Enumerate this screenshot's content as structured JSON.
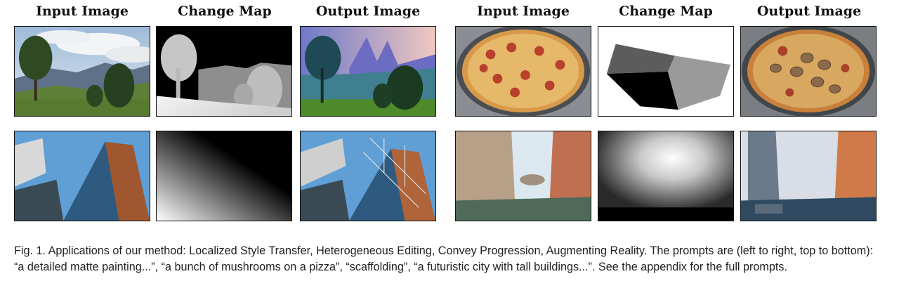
{
  "headers": {
    "left": [
      "Input Image",
      "Change Map",
      "Output Image"
    ],
    "right": [
      "Input Image",
      "Change Map",
      "Output Image"
    ]
  },
  "images": [
    [
      "landscape-input-image",
      "landscape-change-map",
      "landscape-output-image",
      "pizza-input-image",
      "pizza-change-map",
      "pizza-output-image"
    ],
    [
      "skyscraper-input-image",
      "skyscraper-change-map",
      "skyscraper-output-image",
      "canal-input-image",
      "canal-change-map",
      "canal-output-image"
    ]
  ],
  "caption": {
    "text": "Fig. 1.  Applications of our method: Localized Style Transfer, Heterogeneous Editing, Convey Progression, Augmenting Reality. The prompts are (left to right, top to bottom): “a detailed matte painting...”, “a bunch of mushrooms on a pizza”, “scaffolding”, “a futuristic city with tall buildings...”. See the appendix for the full prompts."
  }
}
